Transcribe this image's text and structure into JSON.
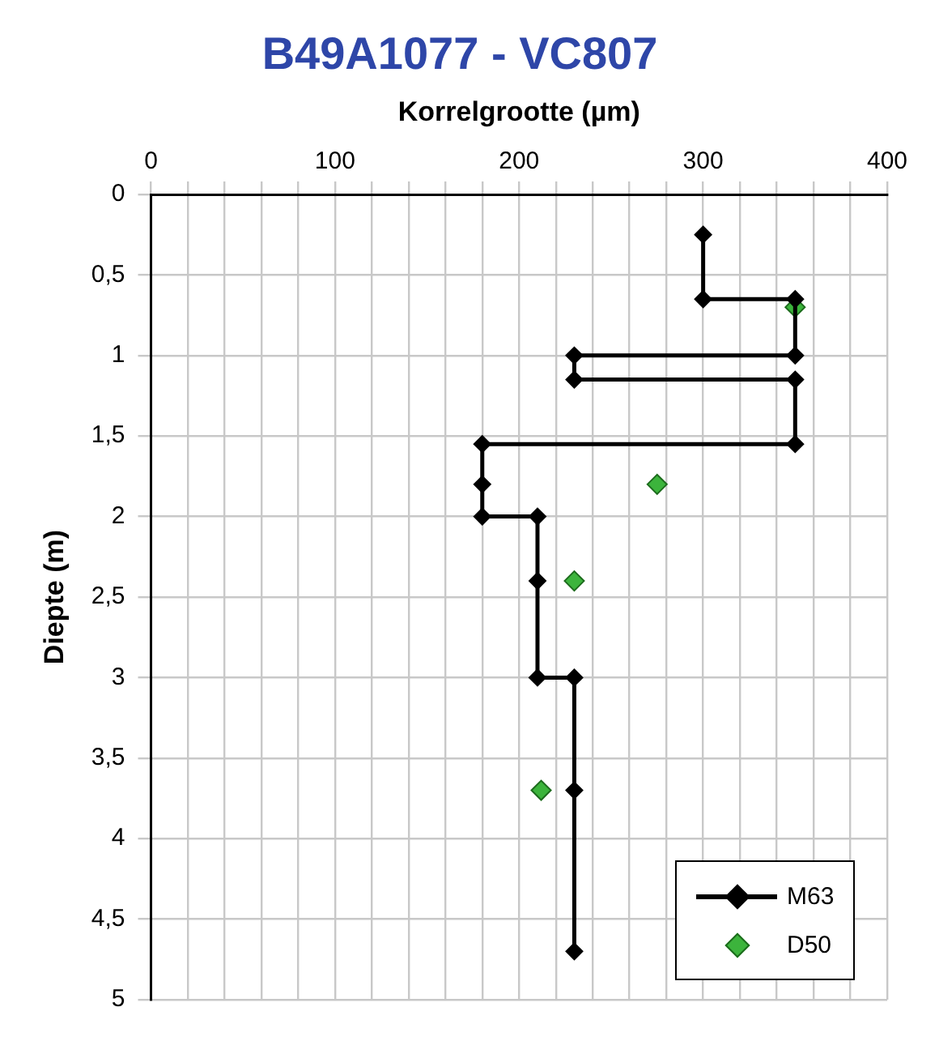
{
  "chart_data": {
    "type": "line",
    "title": "B49A1077 - VC807",
    "xlabel": "Korrelgrootte (µm)",
    "ylabel": "Diepte (m)",
    "xlim": [
      0,
      400
    ],
    "xticks": [
      0,
      {
        "value": 20,
        "label": null
      },
      {
        "value": 40,
        "label": null
      },
      {
        "value": 60,
        "label": null
      },
      {
        "value": 80,
        "label": null
      },
      100,
      {
        "value": 120,
        "label": null
      },
      {
        "value": 140,
        "label": null
      },
      {
        "value": 160,
        "label": null
      },
      {
        "value": 180,
        "label": null
      },
      200,
      {
        "value": 220,
        "label": null
      },
      {
        "value": 240,
        "label": null
      },
      {
        "value": 260,
        "label": null
      },
      {
        "value": 280,
        "label": null
      },
      300,
      {
        "value": 320,
        "label": null
      },
      {
        "value": 340,
        "label": null
      },
      {
        "value": 360,
        "label": null
      },
      {
        "value": 380,
        "label": null
      },
      400
    ],
    "ylim": [
      5,
      0
    ],
    "yticks": [
      0,
      {
        "value": 0.5,
        "label": "0,5"
      },
      1,
      {
        "value": 1.5,
        "label": "1,5"
      },
      2,
      {
        "value": 2.5,
        "label": "2,5"
      },
      3,
      {
        "value": 3.5,
        "label": "3,5"
      },
      4,
      {
        "value": 4.5,
        "label": "4,5"
      },
      5
    ],
    "grid": true,
    "legend": "bottom right",
    "marker": "diamond",
    "line_style": "solid",
    "series": [
      {
        "name": "M63",
        "color": "#000000",
        "x": [
          300,
          300,
          350,
          350,
          230,
          230,
          350,
          350,
          180,
          180,
          180,
          210,
          210,
          210,
          230,
          230,
          230
        ],
        "values": [
          0.25,
          0.65,
          0.65,
          1.0,
          1.0,
          1.15,
          1.15,
          1.55,
          1.55,
          1.8,
          2.0,
          2.0,
          2.4,
          3.0,
          3.0,
          3.7,
          4.7
        ]
      },
      {
        "name": "D50",
        "type": "scatter",
        "color": "#3cb43c",
        "x": [
          350,
          275,
          230,
          212
        ],
        "values": [
          0.7,
          1.8,
          2.4,
          3.7
        ]
      }
    ]
  }
}
